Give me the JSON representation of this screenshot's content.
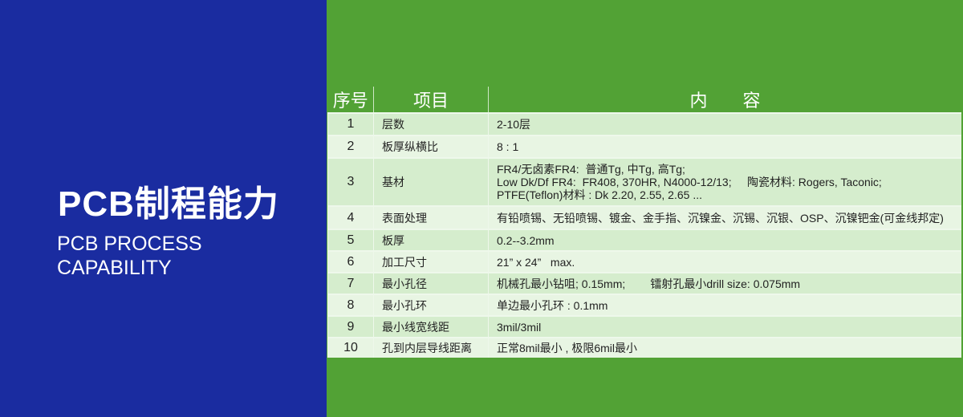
{
  "left_panel": {
    "title": "PCB制程能力",
    "subtitle_line1": "PCB PROCESS",
    "subtitle_line2": "CAPABILITY"
  },
  "colors": {
    "blue": "#1a2ca0",
    "green": "#52a235",
    "row_dark": "#d5edcd",
    "row_light": "#e8f5e3"
  },
  "table": {
    "headers": [
      "序号",
      "项目",
      "内　　容"
    ],
    "rows": [
      {
        "no": "1",
        "item": "层数",
        "content": [
          "2-10层"
        ]
      },
      {
        "no": "2",
        "item": "板厚纵横比",
        "content": [
          "8 : 1"
        ]
      },
      {
        "no": "3",
        "item": "基材",
        "content": [
          "FR4/无卤素FR4:  普通Tg, 中Tg, 高Tg;",
          "Low Dk/Df FR4:  FR408, 370HR, N4000-12/13;     陶瓷材料: Rogers, Taconic;",
          "PTFE(Teflon)材料 : Dk 2.20, 2.55, 2.65 ..."
        ]
      },
      {
        "no": "4",
        "item": "表面处理",
        "content": [
          "有铅喷锡、无铅喷锡、镀金、金手指、沉镍金、沉锡、沉银、OSP、沉镍钯金(可金线邦定)"
        ]
      },
      {
        "no": "5",
        "item": "板厚",
        "content": [
          "0.2--3.2mm"
        ]
      },
      {
        "no": "6",
        "item": "加工尺寸",
        "content": [
          "21” x 24”   max."
        ]
      },
      {
        "no": "7",
        "item": "最小孔径",
        "content": [
          "机械孔最小钻咀; 0.15mm;        镭射孔最小drill size: 0.075mm"
        ]
      },
      {
        "no": "8",
        "item": "最小孔环",
        "content": [
          "单边最小孔环 : 0.1mm"
        ]
      },
      {
        "no": "9",
        "item": "最小线宽线距",
        "content": [
          "3mil/3mil"
        ]
      },
      {
        "no": "10",
        "item": "孔到内层导线距离",
        "content": [
          "正常8mil最小 , 极限6mil最小"
        ]
      }
    ]
  }
}
